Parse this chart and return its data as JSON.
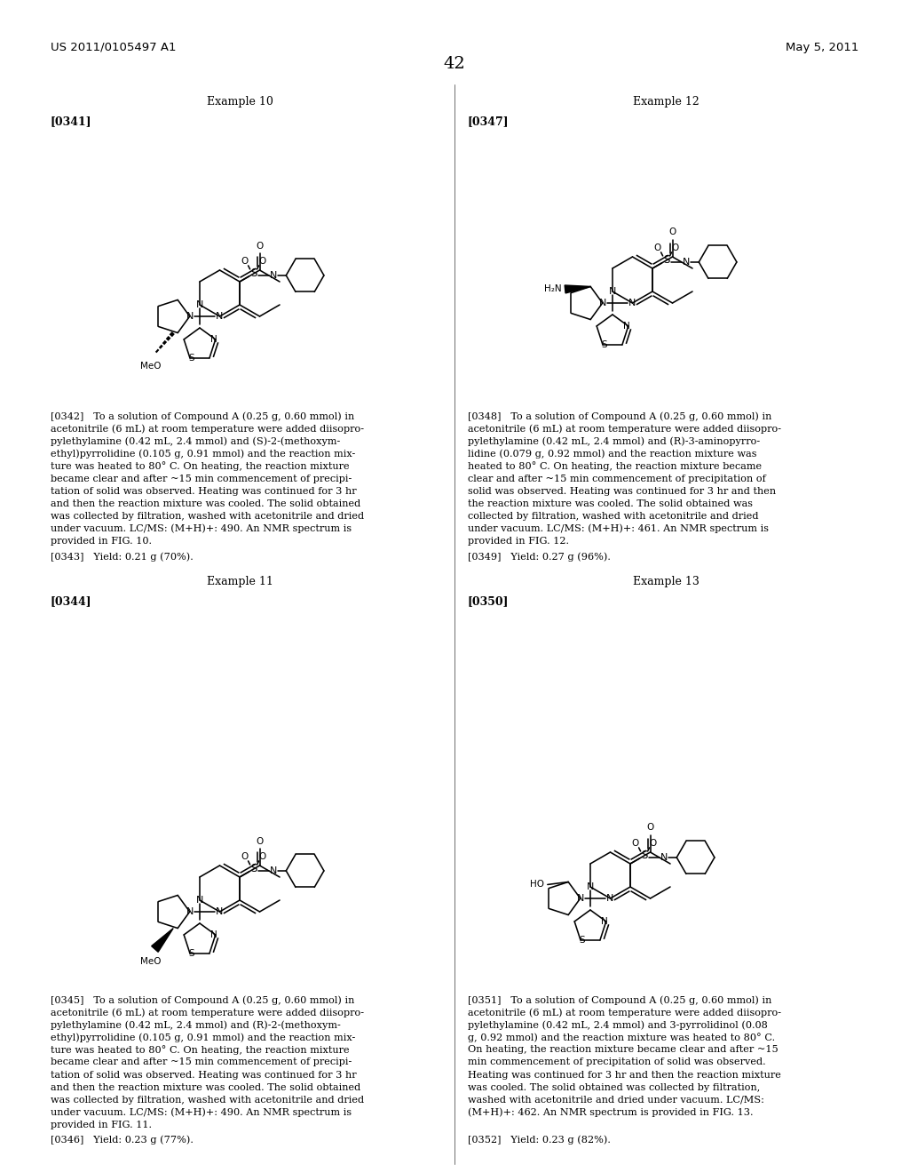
{
  "background_color": "#ffffff",
  "page_header_left": "US 2011/0105497 A1",
  "page_header_right": "May 5, 2011",
  "page_number": "42",
  "body10_lines": [
    "[0342]   To a solution of Compound A (0.25 g, 0.60 mmol) in",
    "acetonitrile (6 mL) at room temperature were added diisopro-",
    "pylethylamine (0.42 mL, 2.4 mmol) and (S)-2-(methoxym-",
    "ethyl)pyrrolidine (0.105 g, 0.91 mmol) and the reaction mix-",
    "ture was heated to 80° C. On heating, the reaction mixture",
    "became clear and after ~15 min commencement of precipi-",
    "tation of solid was observed. Heating was continued for 3 hr",
    "and then the reaction mixture was cooled. The solid obtained",
    "was collected by filtration, washed with acetonitrile and dried",
    "under vacuum. LC/MS: (M+H)+: 490. An NMR spectrum is",
    "provided in FIG. 10."
  ],
  "yield10": "[0343]   Yield: 0.21 g (70%).",
  "body12_lines": [
    "[0348]   To a solution of Compound A (0.25 g, 0.60 mmol) in",
    "acetonitrile (6 mL) at room temperature were added diisopro-",
    "pylethylamine (0.42 mL, 2.4 mmol) and (R)-3-aminopyrro-",
    "lidine (0.079 g, 0.92 mmol) and the reaction mixture was",
    "heated to 80° C. On heating, the reaction mixture became",
    "clear and after ~15 min commencement of precipitation of",
    "solid was observed. Heating was continued for 3 hr and then",
    "the reaction mixture was cooled. The solid obtained was",
    "collected by filtration, washed with acetonitrile and dried",
    "under vacuum. LC/MS: (M+H)+: 461. An NMR spectrum is",
    "provided in FIG. 12."
  ],
  "yield12": "[0349]   Yield: 0.27 g (96%).",
  "body11_lines": [
    "[0345]   To a solution of Compound A (0.25 g, 0.60 mmol) in",
    "acetonitrile (6 mL) at room temperature were added diisopro-",
    "pylethylamine (0.42 mL, 2.4 mmol) and (R)-2-(methoxym-",
    "ethyl)pyrrolidine (0.105 g, 0.91 mmol) and the reaction mix-",
    "ture was heated to 80° C. On heating, the reaction mixture",
    "became clear and after ~15 min commencement of precipi-",
    "tation of solid was observed. Heating was continued for 3 hr",
    "and then the reaction mixture was cooled. The solid obtained",
    "was collected by filtration, washed with acetonitrile and dried",
    "under vacuum. LC/MS: (M+H)+: 490. An NMR spectrum is",
    "provided in FIG. 11."
  ],
  "yield11": "[0346]   Yield: 0.23 g (77%).",
  "body13_lines": [
    "[0351]   To a solution of Compound A (0.25 g, 0.60 mmol) in",
    "acetonitrile (6 mL) at room temperature were added diisopro-",
    "pylethylamine (0.42 mL, 2.4 mmol) and 3-pyrrolidinol (0.08",
    "g, 0.92 mmol) and the reaction mixture was heated to 80° C.",
    "On heating, the reaction mixture became clear and after ~15",
    "min commencement of precipitation of solid was observed.",
    "Heating was continued for 3 hr and then the reaction mixture",
    "was cooled. The solid obtained was collected by filtration,",
    "washed with acetonitrile and dried under vacuum. LC/MS:",
    "(M+H)+: 462. An NMR spectrum is provided in FIG. 13."
  ],
  "yield13": "[0352]   Yield: 0.23 g (82%)."
}
